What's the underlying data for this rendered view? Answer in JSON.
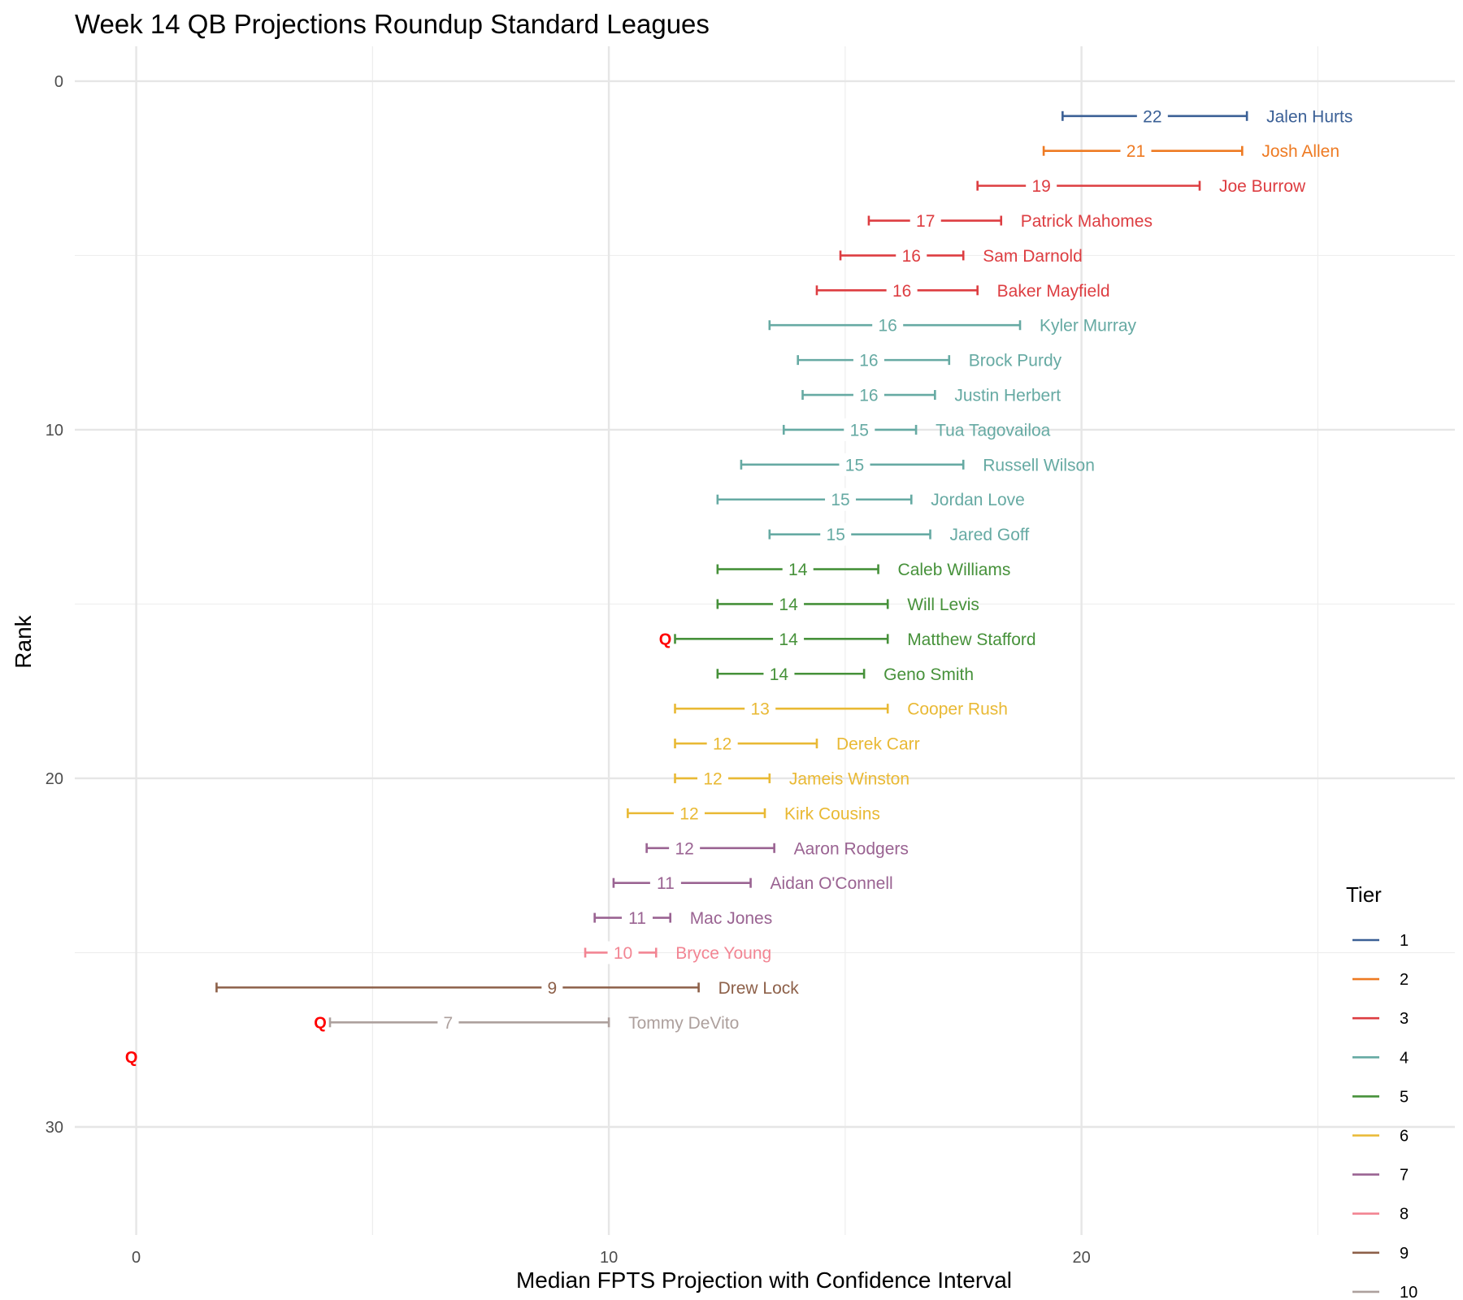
{
  "chart_data": {
    "type": "errorbar",
    "title": "Week 14 QB Projections Roundup Standard Leagues",
    "xlabel": "Median FPTS Projection with Confidence Interval",
    "ylabel": "Rank",
    "xlim": [
      -1.3,
      27.9
    ],
    "ylim": [
      33.1,
      -1.0
    ],
    "x_ticks": [
      0,
      10,
      20
    ],
    "y_ticks": [
      0,
      10,
      20,
      30
    ],
    "grid": true,
    "legend_title": "Tier",
    "legend_position": "right",
    "tier_colors": {
      "1": "#3b6096",
      "2": "#ee7a22",
      "3": "#dd3d41",
      "4": "#66aaa3",
      "5": "#46913a",
      "6": "#e9b934",
      "7": "#9a6392",
      "8": "#f28593",
      "9": "#8d6049",
      "10": "#ada09d"
    },
    "players": [
      {
        "rank": 1,
        "name": "Jalen Hurts",
        "tier": 1,
        "median": 22,
        "low": 19.6,
        "high": 23.5,
        "median_x": 21.5,
        "flag": ""
      },
      {
        "rank": 2,
        "name": "Josh Allen",
        "tier": 2,
        "median": 21,
        "low": 19.2,
        "high": 23.4,
        "median_x": 21.15,
        "flag": ""
      },
      {
        "rank": 3,
        "name": "Joe Burrow",
        "tier": 3,
        "median": 19,
        "low": 17.8,
        "high": 22.5,
        "median_x": 19.15,
        "flag": ""
      },
      {
        "rank": 4,
        "name": "Patrick Mahomes",
        "tier": 3,
        "median": 17,
        "low": 15.5,
        "high": 18.3,
        "median_x": 16.7,
        "flag": ""
      },
      {
        "rank": 5,
        "name": "Sam Darnold",
        "tier": 3,
        "median": 16,
        "low": 14.9,
        "high": 17.5,
        "median_x": 16.4,
        "flag": ""
      },
      {
        "rank": 6,
        "name": "Baker Mayfield",
        "tier": 3,
        "median": 16,
        "low": 14.4,
        "high": 17.8,
        "median_x": 16.2,
        "flag": ""
      },
      {
        "rank": 7,
        "name": "Kyler Murray",
        "tier": 4,
        "median": 16,
        "low": 13.4,
        "high": 18.7,
        "median_x": 15.9,
        "flag": ""
      },
      {
        "rank": 8,
        "name": "Brock Purdy",
        "tier": 4,
        "median": 16,
        "low": 14.0,
        "high": 17.2,
        "median_x": 15.5,
        "flag": ""
      },
      {
        "rank": 9,
        "name": "Justin Herbert",
        "tier": 4,
        "median": 16,
        "low": 14.1,
        "high": 16.9,
        "median_x": 15.5,
        "flag": ""
      },
      {
        "rank": 10,
        "name": "Tua Tagovailoa",
        "tier": 4,
        "median": 15,
        "low": 13.7,
        "high": 16.5,
        "median_x": 15.3,
        "flag": ""
      },
      {
        "rank": 11,
        "name": "Russell Wilson",
        "tier": 4,
        "median": 15,
        "low": 12.8,
        "high": 17.5,
        "median_x": 15.2,
        "flag": ""
      },
      {
        "rank": 12,
        "name": "Jordan Love",
        "tier": 4,
        "median": 15,
        "low": 12.3,
        "high": 16.4,
        "median_x": 14.9,
        "flag": ""
      },
      {
        "rank": 13,
        "name": "Jared Goff",
        "tier": 4,
        "median": 15,
        "low": 13.4,
        "high": 16.8,
        "median_x": 14.8,
        "flag": ""
      },
      {
        "rank": 14,
        "name": "Caleb Williams",
        "tier": 5,
        "median": 14,
        "low": 12.3,
        "high": 15.7,
        "median_x": 14.0,
        "flag": ""
      },
      {
        "rank": 15,
        "name": "Will Levis",
        "tier": 5,
        "median": 14,
        "low": 12.3,
        "high": 15.9,
        "median_x": 13.8,
        "flag": ""
      },
      {
        "rank": 16,
        "name": "Matthew Stafford",
        "tier": 5,
        "median": 14,
        "low": 11.4,
        "high": 15.9,
        "median_x": 13.8,
        "flag": "Q"
      },
      {
        "rank": 17,
        "name": "Geno Smith",
        "tier": 5,
        "median": 14,
        "low": 12.3,
        "high": 15.4,
        "median_x": 13.6,
        "flag": ""
      },
      {
        "rank": 18,
        "name": "Cooper Rush",
        "tier": 6,
        "median": 13,
        "low": 11.4,
        "high": 15.9,
        "median_x": 13.2,
        "flag": ""
      },
      {
        "rank": 19,
        "name": "Derek Carr",
        "tier": 6,
        "median": 12,
        "low": 11.4,
        "high": 14.4,
        "median_x": 12.4,
        "flag": ""
      },
      {
        "rank": 20,
        "name": "Jameis Winston",
        "tier": 6,
        "median": 12,
        "low": 11.4,
        "high": 13.4,
        "median_x": 12.2,
        "flag": ""
      },
      {
        "rank": 21,
        "name": "Kirk Cousins",
        "tier": 6,
        "median": 12,
        "low": 10.4,
        "high": 13.3,
        "median_x": 11.7,
        "flag": ""
      },
      {
        "rank": 22,
        "name": "Aaron Rodgers",
        "tier": 7,
        "median": 12,
        "low": 10.8,
        "high": 13.5,
        "median_x": 11.6,
        "flag": ""
      },
      {
        "rank": 23,
        "name": "Aidan O'Connell",
        "tier": 7,
        "median": 11,
        "low": 10.1,
        "high": 13.0,
        "median_x": 11.2,
        "flag": ""
      },
      {
        "rank": 24,
        "name": "Mac Jones",
        "tier": 7,
        "median": 11,
        "low": 9.7,
        "high": 11.3,
        "median_x": 10.6,
        "flag": ""
      },
      {
        "rank": 25,
        "name": "Bryce Young",
        "tier": 8,
        "median": 10,
        "low": 9.5,
        "high": 11.0,
        "median_x": 10.3,
        "flag": ""
      },
      {
        "rank": 26,
        "name": "Drew Lock",
        "tier": 9,
        "median": 9,
        "low": 1.7,
        "high": 11.9,
        "median_x": 8.8,
        "flag": ""
      },
      {
        "rank": 27,
        "name": "Tommy DeVito",
        "tier": 10,
        "median": 7,
        "low": 4.1,
        "high": 10.0,
        "median_x": 6.6,
        "flag": "Q"
      },
      {
        "rank": 28,
        "name": "",
        "tier": 10,
        "median": null,
        "low": null,
        "high": null,
        "median_x": null,
        "flag": "Q"
      }
    ]
  }
}
